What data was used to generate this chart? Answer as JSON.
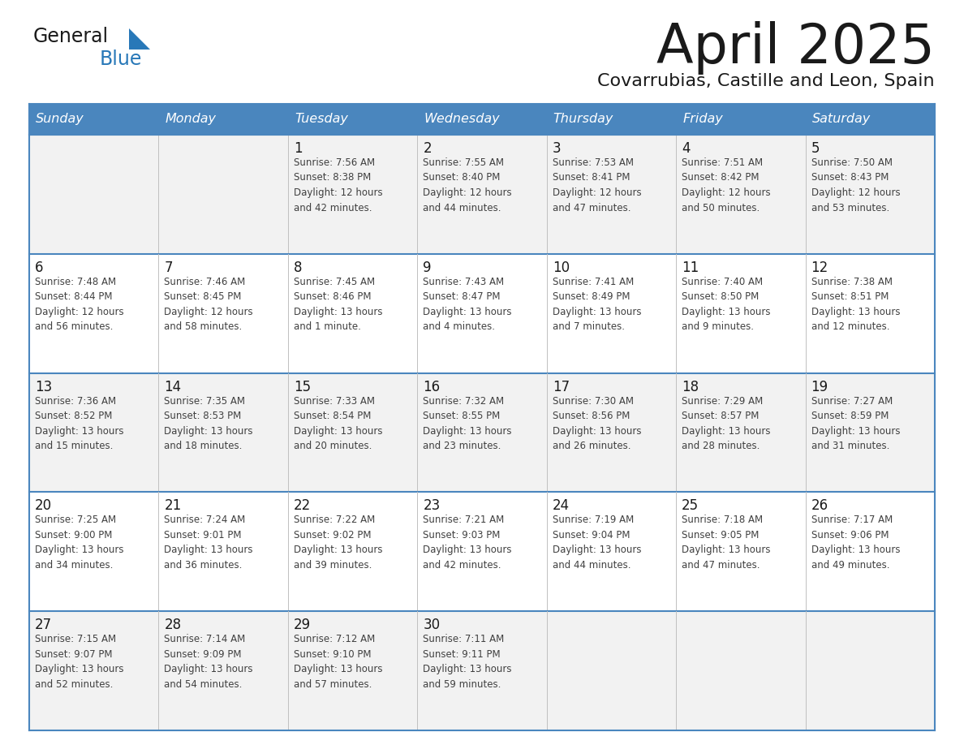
{
  "title": "April 2025",
  "subtitle": "Covarrubias, Castille and Leon, Spain",
  "header_bg": "#4a86be",
  "header_text": "#ffffff",
  "border_color": "#4a86be",
  "row_sep_color": "#4a86be",
  "col_sep_color": "#c0c0c0",
  "cell_bg_even": "#f2f2f2",
  "cell_bg_odd": "#ffffff",
  "title_color": "#1a1a1a",
  "subtitle_color": "#1a1a1a",
  "day_num_color": "#1a1a1a",
  "cell_text_color": "#404040",
  "logo_text_color": "#1a1a1a",
  "logo_blue_color": "#2878b8",
  "day_headers": [
    "Sunday",
    "Monday",
    "Tuesday",
    "Wednesday",
    "Thursday",
    "Friday",
    "Saturday"
  ],
  "weeks": [
    [
      {
        "day": "",
        "info": ""
      },
      {
        "day": "",
        "info": ""
      },
      {
        "day": "1",
        "info": "Sunrise: 7:56 AM\nSunset: 8:38 PM\nDaylight: 12 hours\nand 42 minutes."
      },
      {
        "day": "2",
        "info": "Sunrise: 7:55 AM\nSunset: 8:40 PM\nDaylight: 12 hours\nand 44 minutes."
      },
      {
        "day": "3",
        "info": "Sunrise: 7:53 AM\nSunset: 8:41 PM\nDaylight: 12 hours\nand 47 minutes."
      },
      {
        "day": "4",
        "info": "Sunrise: 7:51 AM\nSunset: 8:42 PM\nDaylight: 12 hours\nand 50 minutes."
      },
      {
        "day": "5",
        "info": "Sunrise: 7:50 AM\nSunset: 8:43 PM\nDaylight: 12 hours\nand 53 minutes."
      }
    ],
    [
      {
        "day": "6",
        "info": "Sunrise: 7:48 AM\nSunset: 8:44 PM\nDaylight: 12 hours\nand 56 minutes."
      },
      {
        "day": "7",
        "info": "Sunrise: 7:46 AM\nSunset: 8:45 PM\nDaylight: 12 hours\nand 58 minutes."
      },
      {
        "day": "8",
        "info": "Sunrise: 7:45 AM\nSunset: 8:46 PM\nDaylight: 13 hours\nand 1 minute."
      },
      {
        "day": "9",
        "info": "Sunrise: 7:43 AM\nSunset: 8:47 PM\nDaylight: 13 hours\nand 4 minutes."
      },
      {
        "day": "10",
        "info": "Sunrise: 7:41 AM\nSunset: 8:49 PM\nDaylight: 13 hours\nand 7 minutes."
      },
      {
        "day": "11",
        "info": "Sunrise: 7:40 AM\nSunset: 8:50 PM\nDaylight: 13 hours\nand 9 minutes."
      },
      {
        "day": "12",
        "info": "Sunrise: 7:38 AM\nSunset: 8:51 PM\nDaylight: 13 hours\nand 12 minutes."
      }
    ],
    [
      {
        "day": "13",
        "info": "Sunrise: 7:36 AM\nSunset: 8:52 PM\nDaylight: 13 hours\nand 15 minutes."
      },
      {
        "day": "14",
        "info": "Sunrise: 7:35 AM\nSunset: 8:53 PM\nDaylight: 13 hours\nand 18 minutes."
      },
      {
        "day": "15",
        "info": "Sunrise: 7:33 AM\nSunset: 8:54 PM\nDaylight: 13 hours\nand 20 minutes."
      },
      {
        "day": "16",
        "info": "Sunrise: 7:32 AM\nSunset: 8:55 PM\nDaylight: 13 hours\nand 23 minutes."
      },
      {
        "day": "17",
        "info": "Sunrise: 7:30 AM\nSunset: 8:56 PM\nDaylight: 13 hours\nand 26 minutes."
      },
      {
        "day": "18",
        "info": "Sunrise: 7:29 AM\nSunset: 8:57 PM\nDaylight: 13 hours\nand 28 minutes."
      },
      {
        "day": "19",
        "info": "Sunrise: 7:27 AM\nSunset: 8:59 PM\nDaylight: 13 hours\nand 31 minutes."
      }
    ],
    [
      {
        "day": "20",
        "info": "Sunrise: 7:25 AM\nSunset: 9:00 PM\nDaylight: 13 hours\nand 34 minutes."
      },
      {
        "day": "21",
        "info": "Sunrise: 7:24 AM\nSunset: 9:01 PM\nDaylight: 13 hours\nand 36 minutes."
      },
      {
        "day": "22",
        "info": "Sunrise: 7:22 AM\nSunset: 9:02 PM\nDaylight: 13 hours\nand 39 minutes."
      },
      {
        "day": "23",
        "info": "Sunrise: 7:21 AM\nSunset: 9:03 PM\nDaylight: 13 hours\nand 42 minutes."
      },
      {
        "day": "24",
        "info": "Sunrise: 7:19 AM\nSunset: 9:04 PM\nDaylight: 13 hours\nand 44 minutes."
      },
      {
        "day": "25",
        "info": "Sunrise: 7:18 AM\nSunset: 9:05 PM\nDaylight: 13 hours\nand 47 minutes."
      },
      {
        "day": "26",
        "info": "Sunrise: 7:17 AM\nSunset: 9:06 PM\nDaylight: 13 hours\nand 49 minutes."
      }
    ],
    [
      {
        "day": "27",
        "info": "Sunrise: 7:15 AM\nSunset: 9:07 PM\nDaylight: 13 hours\nand 52 minutes."
      },
      {
        "day": "28",
        "info": "Sunrise: 7:14 AM\nSunset: 9:09 PM\nDaylight: 13 hours\nand 54 minutes."
      },
      {
        "day": "29",
        "info": "Sunrise: 7:12 AM\nSunset: 9:10 PM\nDaylight: 13 hours\nand 57 minutes."
      },
      {
        "day": "30",
        "info": "Sunrise: 7:11 AM\nSunset: 9:11 PM\nDaylight: 13 hours\nand 59 minutes."
      },
      {
        "day": "",
        "info": ""
      },
      {
        "day": "",
        "info": ""
      },
      {
        "day": "",
        "info": ""
      }
    ]
  ]
}
